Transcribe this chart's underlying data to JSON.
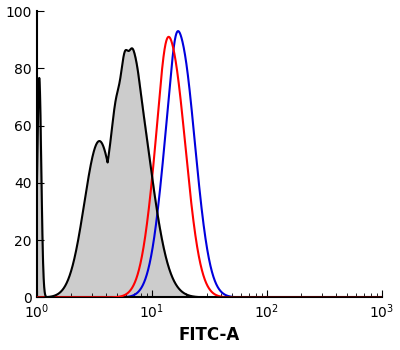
{
  "title": "",
  "xlabel": "FITC-A",
  "ylabel": "",
  "xlim_log": [
    1,
    1000
  ],
  "ylim": [
    0,
    100
  ],
  "yticks": [
    0,
    20,
    40,
    60,
    80,
    100
  ],
  "black_color": "#000000",
  "red_color": "#ff0000",
  "blue_color": "#0000dd",
  "fill_color": "#cccccc",
  "background_color": "#ffffff",
  "linewidth": 1.5,
  "figsize": [
    4.0,
    3.5
  ],
  "dpi": 100
}
